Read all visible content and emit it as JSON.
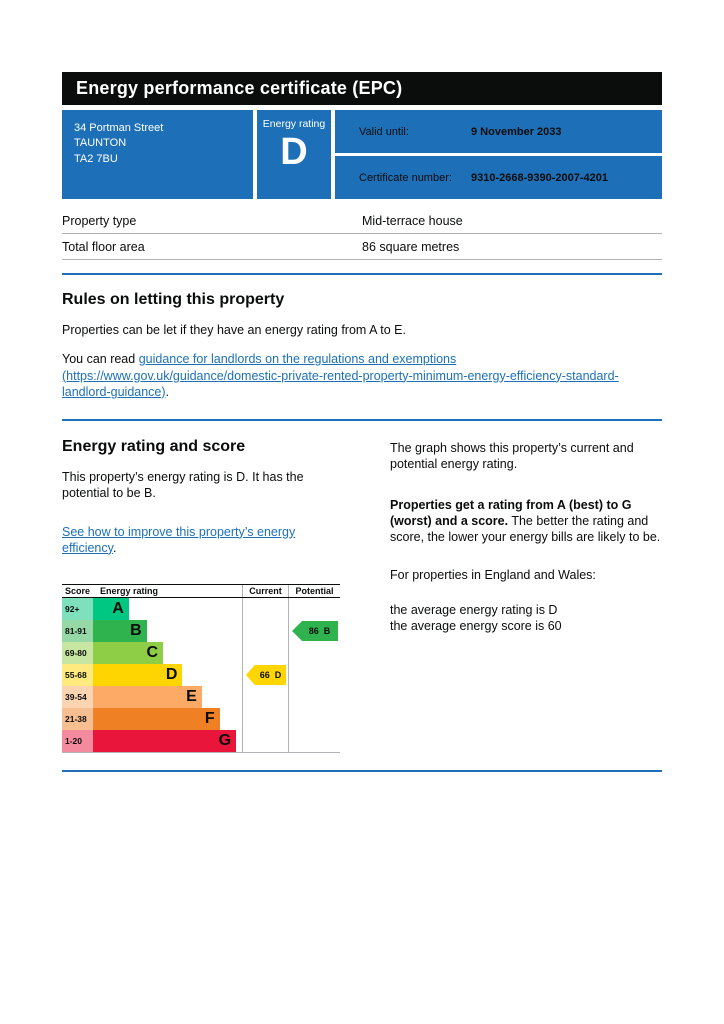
{
  "page": {
    "title": "Energy performance certificate (EPC)"
  },
  "summary": {
    "address_line1": "34 Portman Street",
    "address_line2": "TAUNTON",
    "address_line3": "TA2 7BU",
    "energy_rating_label": "Energy rating",
    "energy_rating": "D",
    "valid_until_label": "Valid until:",
    "valid_until_value": "9 November 2033",
    "certificate_number_label": "Certificate number:",
    "certificate_number_value": "9310-2668-9390-2007-4201"
  },
  "property_details": {
    "rows": [
      {
        "label": "Property type",
        "value": "Mid-terrace house"
      },
      {
        "label": "Total floor area",
        "value": "86 square metres"
      }
    ]
  },
  "rules_section": {
    "heading": "Rules on letting this property",
    "paragraph1": "Properties can be let if they have an energy rating from A to E.",
    "paragraph2_prefix": "You can read ",
    "link_text": "guidance for landlords on the regulations and exemptions",
    "link_url_text": " (https://www.gov.uk/guidance/domestic-private-rented-property-minimum-energy-efficiency-standard-landlord-guidance)",
    "paragraph2_suffix": "."
  },
  "rating_section": {
    "heading": "Energy rating and score",
    "paragraph1": "This property’s energy rating is D. It has the potential to be B.",
    "improve_link_text": "See how to improve this property’s energy efficiency",
    "improve_link_suffix": ".",
    "right_paragraph1": "The graph shows this property’s current and potential energy rating.",
    "right_paragraph2_bold": "Properties get a rating from A (best) to G (worst) and a score.",
    "right_paragraph2_rest": " The better the rating and score, the lower your energy bills are likely to be.",
    "right_paragraph3": "For properties in England and Wales:",
    "average_line1": "the average energy rating is D",
    "average_line2": "the average energy score is 60"
  },
  "chart_data": {
    "type": "bar",
    "title": "Energy rating and score graph",
    "columns": [
      "Score",
      "Energy rating",
      "Current",
      "Potential"
    ],
    "bands": [
      {
        "score_range": "92+",
        "letter": "A",
        "color": "#00c781",
        "tint": "#7fe0bd",
        "width_pct": 24
      },
      {
        "score_range": "81-91",
        "letter": "B",
        "color": "#2eb34e",
        "tint": "#96d9a6",
        "width_pct": 36
      },
      {
        "score_range": "69-80",
        "letter": "C",
        "color": "#8dce46",
        "tint": "#c6e6a2",
        "width_pct": 47
      },
      {
        "score_range": "55-68",
        "letter": "D",
        "color": "#ffd500",
        "tint": "#ffea7f",
        "width_pct": 60
      },
      {
        "score_range": "39-54",
        "letter": "E",
        "color": "#fcaa65",
        "tint": "#fdd4b2",
        "width_pct": 73
      },
      {
        "score_range": "21-38",
        "letter": "F",
        "color": "#ef8023",
        "tint": "#f7bf91",
        "width_pct": 85
      },
      {
        "score_range": "1-20",
        "letter": "G",
        "color": "#e9153b",
        "tint": "#f48a9d",
        "width_pct": 96
      }
    ],
    "current": {
      "score": "66",
      "letter": "D",
      "band_index": 3,
      "color": "#ffd500"
    },
    "potential": {
      "score": "86",
      "letter": "B",
      "band_index": 1,
      "color": "#2eb34e"
    }
  },
  "colors": {
    "govuk_blue": "#1d70b8",
    "title_bar_black": "#0b0c0c",
    "border_grey": "#b1b4b6",
    "link_blue": "#1d70b8"
  }
}
